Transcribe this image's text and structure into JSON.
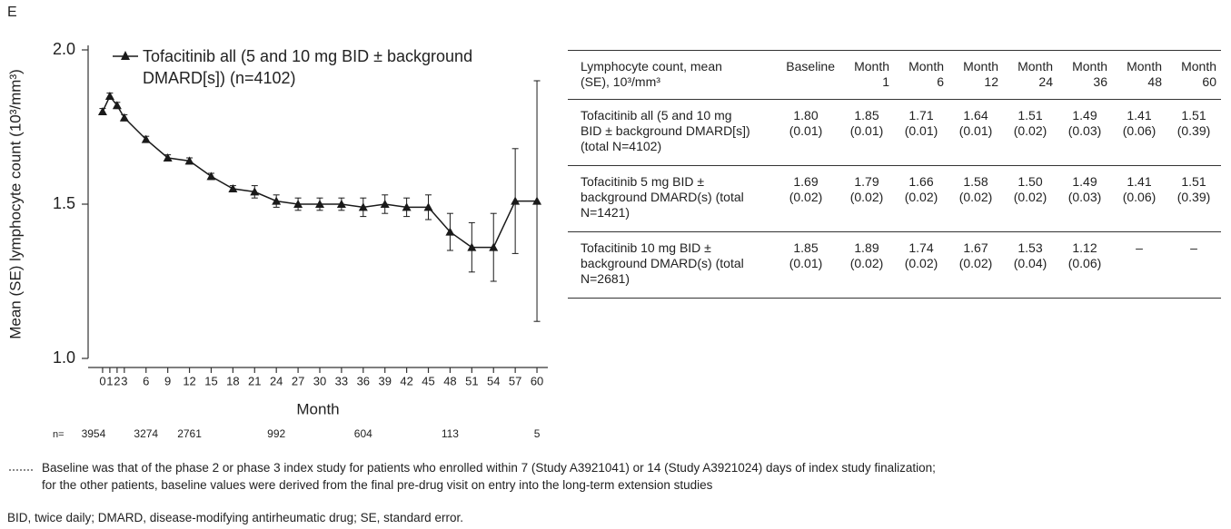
{
  "panel_label": "E",
  "chart_data": {
    "type": "line",
    "ylabel": "Mean (SE) lymphocyte count (10³/mm³)",
    "xlabel": "Month",
    "x": [
      0,
      1,
      2,
      3,
      6,
      9,
      12,
      15,
      18,
      21,
      24,
      27,
      30,
      33,
      36,
      39,
      42,
      45,
      48,
      51,
      54,
      57,
      60
    ],
    "series": [
      {
        "name": "Tofacitinib all (5 and 10 mg BID ± background DMARD[s]) (n=4102)",
        "color": "#1a1a1a",
        "values": [
          1.8,
          1.85,
          1.82,
          1.78,
          1.71,
          1.65,
          1.64,
          1.59,
          1.55,
          1.54,
          1.51,
          1.5,
          1.5,
          1.5,
          1.49,
          1.5,
          1.49,
          1.49,
          1.41,
          1.36,
          1.36,
          1.51,
          1.51
        ],
        "errors": [
          0.01,
          0.01,
          0.01,
          0.01,
          0.01,
          0.01,
          0.01,
          0.01,
          0.01,
          0.02,
          0.02,
          0.02,
          0.02,
          0.02,
          0.03,
          0.03,
          0.03,
          0.04,
          0.06,
          0.08,
          0.11,
          0.17,
          0.39
        ]
      }
    ],
    "xlim": [
      -2,
      61.5
    ],
    "xticks": [
      0,
      1,
      2,
      3,
      6,
      9,
      12,
      15,
      18,
      21,
      24,
      27,
      30,
      33,
      36,
      39,
      42,
      45,
      48,
      51,
      54,
      57,
      60
    ],
    "ylim": [
      1,
      2
    ],
    "yticks": [
      {
        "value": 1,
        "label": "1.0"
      },
      {
        "value": 1.5,
        "label": "1.5"
      },
      {
        "value": 2,
        "label": "2.0"
      }
    ],
    "n_label": "n=",
    "n_at_risk": {
      "x": [
        0,
        6,
        12,
        24,
        36,
        48,
        60
      ],
      "values": [
        3954,
        3274,
        2761,
        992,
        604,
        113,
        5
      ]
    }
  },
  "table": {
    "header": [
      "Lymphocyte count, mean (SE), 10³/mm³",
      "Baseline",
      "Month 1",
      "Month 6",
      "Month 12",
      "Month 24",
      "Month 36",
      "Month 48",
      "Month 60"
    ],
    "rows": [
      [
        "Tofacitinib all (5 and 10 mg BID ± background DMARD[s]) (total N=4102)",
        "1.80 (0.01)",
        "1.85 (0.01)",
        "1.71 (0.01)",
        "1.64 (0.01)",
        "1.51 (0.02)",
        "1.49 (0.03)",
        "1.41 (0.06)",
        "1.51 (0.39)"
      ],
      [
        "Tofacitinib 5 mg BID ± background DMARD(s) (total N=1421)",
        "1.69 (0.02)",
        "1.79 (0.02)",
        "1.66 (0.02)",
        "1.58 (0.02)",
        "1.50 (0.02)",
        "1.49 (0.03)",
        "1.41 (0.06)",
        "1.51 (0.39)"
      ],
      [
        "Tofacitinib 10 mg BID ± background DMARD(s) (total N=2681)",
        "1.85 (0.01)",
        "1.89 (0.02)",
        "1.74 (0.02)",
        "1.67 (0.02)",
        "1.53 (0.04)",
        "1.12 (0.06)",
        "–",
        "–"
      ]
    ]
  },
  "footnotes": {
    "baseline": [
      "Baseline was that of the phase 2 or phase 3 index study for patients who enrolled within 7 (Study A3921041) or 14 (Study A3921024) days of index study finalization;",
      "for the other patients, baseline values were derived from the final pre-drug visit on entry into the long-term extension studies"
    ],
    "abbreviations": "BID, twice daily; DMARD, disease-modifying antirheumatic drug; SE, standard error."
  }
}
